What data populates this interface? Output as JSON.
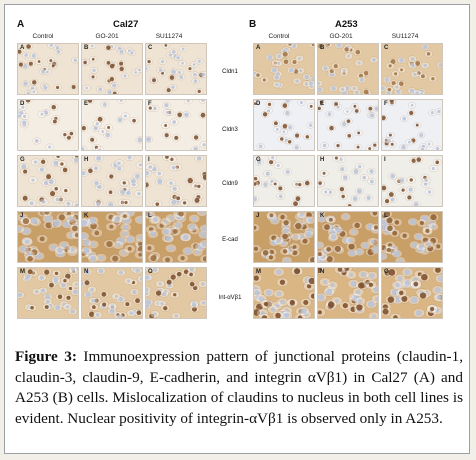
{
  "panels": [
    {
      "letter": "A",
      "cell_line": "Cal27",
      "columns": [
        "Control",
        "GO-201",
        "SU11274"
      ],
      "rows": [
        "Cldn1",
        "Cldn3",
        "Cldn9",
        "E-cad",
        "Int-αVβ1"
      ],
      "tiles": [
        "A",
        "B",
        "C",
        "D",
        "E",
        "F",
        "G",
        "H",
        "I",
        "J",
        "K",
        "L",
        "M",
        "N",
        "O"
      ]
    },
    {
      "letter": "B",
      "cell_line": "A253",
      "columns": [
        "Control",
        "GO-201",
        "SU11274"
      ],
      "tiles": [
        "A",
        "B",
        "C",
        "D",
        "E",
        "F",
        "G",
        "H",
        "I",
        "J",
        "K",
        "L",
        "M",
        "N",
        "O"
      ]
    }
  ],
  "caption": {
    "label": "Figure 3:",
    "text": "Immunoexpression pattern of junctional proteins (claudin-1, claudin-3, claudin-9, E-cadherin, and integrin αVβ1) in Cal27 (A) and A253 (B) cells. Mislocalization of claudins to nucleus in both cell lines is evident. Nuclear positivity of integrin-αVβ1 is observed only in A253."
  },
  "colors": {
    "light_stain": "#efe4d4",
    "medium_stain": "#e2c9a4",
    "heavy_stain": "#c99f68",
    "nucleus_brown": "#7a4a25",
    "counterstain_blue": "#b9c2d6"
  }
}
